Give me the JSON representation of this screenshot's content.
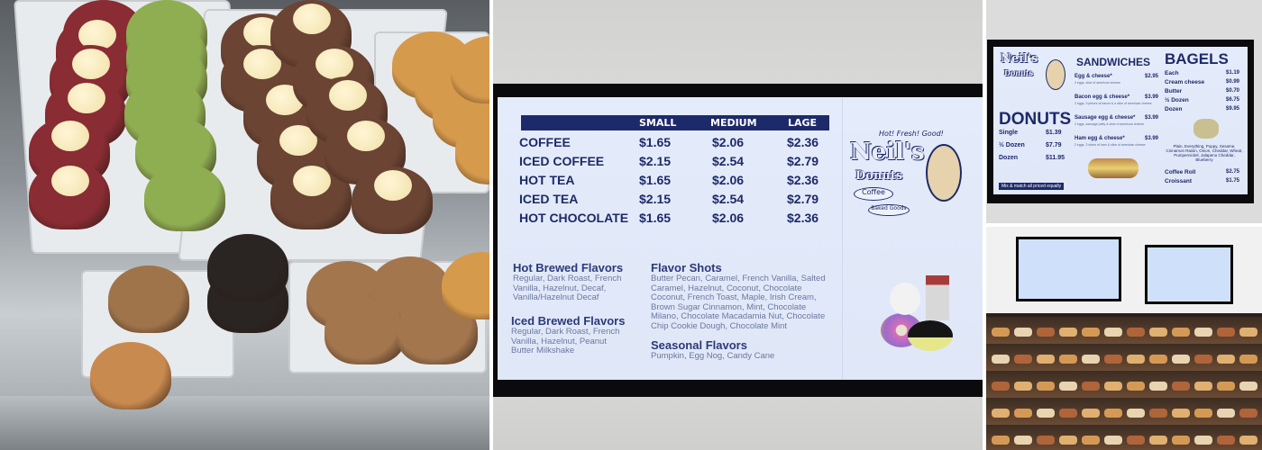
{
  "drink_menu": {
    "tagline": "Hot! Fresh! Good!",
    "brand": "Neil's",
    "brand_sub": "Donuts",
    "badges": [
      "Coffee",
      "Baked Goods"
    ],
    "columns": [
      "SMALL",
      "MEDIUM",
      "LAGE"
    ],
    "rows": [
      {
        "name": "COFFEE",
        "prices": [
          "$1.65",
          "$2.06",
          "$2.36"
        ]
      },
      {
        "name": "ICED COFFEE",
        "prices": [
          "$2.15",
          "$2.54",
          "$2.79"
        ]
      },
      {
        "name": "HOT TEA",
        "prices": [
          "$1.65",
          "$2.06",
          "$2.36"
        ]
      },
      {
        "name": "ICED TEA",
        "prices": [
          "$2.15",
          "$2.54",
          "$2.79"
        ]
      },
      {
        "name": "HOT CHOCOLATE",
        "prices": [
          "$1.65",
          "$2.06",
          "$2.36"
        ]
      }
    ],
    "flavors": {
      "hot_title": "Hot Brewed Flavors",
      "hot_text": "Regular, Dark Roast, French Vanilla, Hazelnut, Decaf, Vanilla/Hazelnut Decaf",
      "iced_title": "Iced Brewed Flavors",
      "iced_text": "Regular, Dark Roast, French Vanilla, Hazelnut, Peanut Butter Milkshake",
      "shots_title": "Flavor Shots",
      "shots_text": "Butter Pecan, Caramel, French Vanilla, Salted Caramel, Hazelnut, Coconut, Chocolate Coconut, French Toast, Maple, Irish Cream, Brown Sugar Cinnamon, Mint, Chocolate Milano, Chocolate Macadamia Nut, Chocolate Chip Cookie Dough, Chocolate Mint",
      "seasonal_title": "Seasonal Flavors",
      "seasonal_text": "Pumpkin, Egg Nog, Candy Cane"
    }
  },
  "food_menu": {
    "donuts_title": "DONUTS",
    "donuts": [
      {
        "name": "Single",
        "price": "$1.39"
      },
      {
        "name": "½ Dozen",
        "price": "$7.79"
      },
      {
        "name": "Dozen",
        "price": "$11.95"
      }
    ],
    "donuts_note": "Mix & match all priced equally",
    "sandwiches_title": "SANDWICHES",
    "sandwiches": [
      {
        "name": "Egg & cheese*",
        "price": "$2.95",
        "desc": "2 eggs, slice of american cheese"
      },
      {
        "name": "Bacon egg & cheese*",
        "price": "$3.99",
        "desc": "2 eggs, 3 pieces of bacon & a slice of american cheese"
      },
      {
        "name": "Sausage egg & cheese*",
        "price": "$3.99",
        "desc": "2 eggs, sausage patty & slice of american cheese"
      },
      {
        "name": "Ham egg & cheese*",
        "price": "$3.99",
        "desc": "2 eggs, 3 slices of ham & slice of american cheese"
      }
    ],
    "bagels_title": "BAGELS",
    "bagels": [
      {
        "name": "Each",
        "price": "$1.19"
      },
      {
        "name": "Cream cheese",
        "price": "$0.99"
      },
      {
        "name": "Butter",
        "price": "$0.70"
      },
      {
        "name": "½ Dozen",
        "price": "$6.75"
      },
      {
        "name": "Dozen",
        "price": "$9.95"
      }
    ],
    "bagel_types": "Plain, Everything, Poppy, Sesame, Cinnamon Raisin, Onion, Cheddar, Wheat, Pumpernickel, Jalapeno Cheddar, Blueberry",
    "extras": [
      {
        "name": "Coffee Roll",
        "price": "$2.75"
      },
      {
        "name": "Croissant",
        "price": "$1.75"
      }
    ]
  },
  "colors": {
    "menu_navy": "#1d2a6a",
    "screen_bg": "#e2eafa"
  }
}
